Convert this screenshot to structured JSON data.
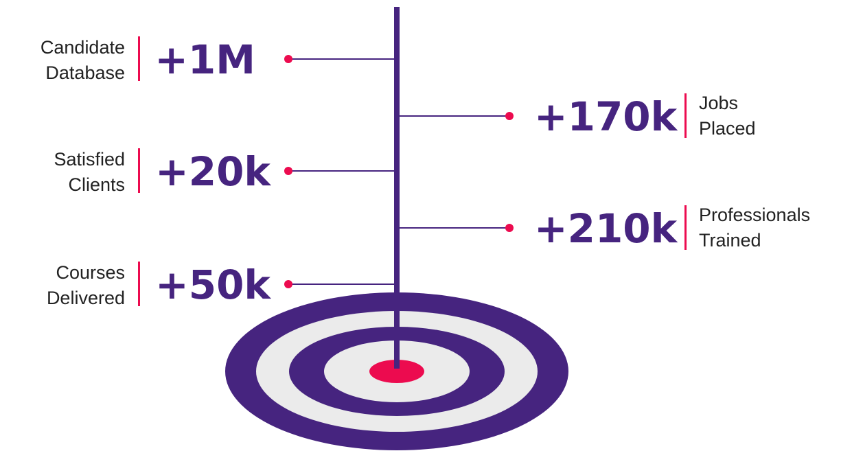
{
  "stats": {
    "left": [
      {
        "label": [
          "Candidate",
          "Database"
        ],
        "value": "+1M"
      },
      {
        "label": [
          "Satisfied",
          "Clients"
        ],
        "value": "+20k"
      },
      {
        "label": [
          "Courses",
          "Delivered"
        ],
        "value": "+50k"
      }
    ],
    "right": [
      {
        "label": [
          "Jobs",
          "Placed"
        ],
        "value": "+170k"
      },
      {
        "label": [
          "Professionals",
          "Trained"
        ],
        "value": "+210k"
      }
    ]
  }
}
